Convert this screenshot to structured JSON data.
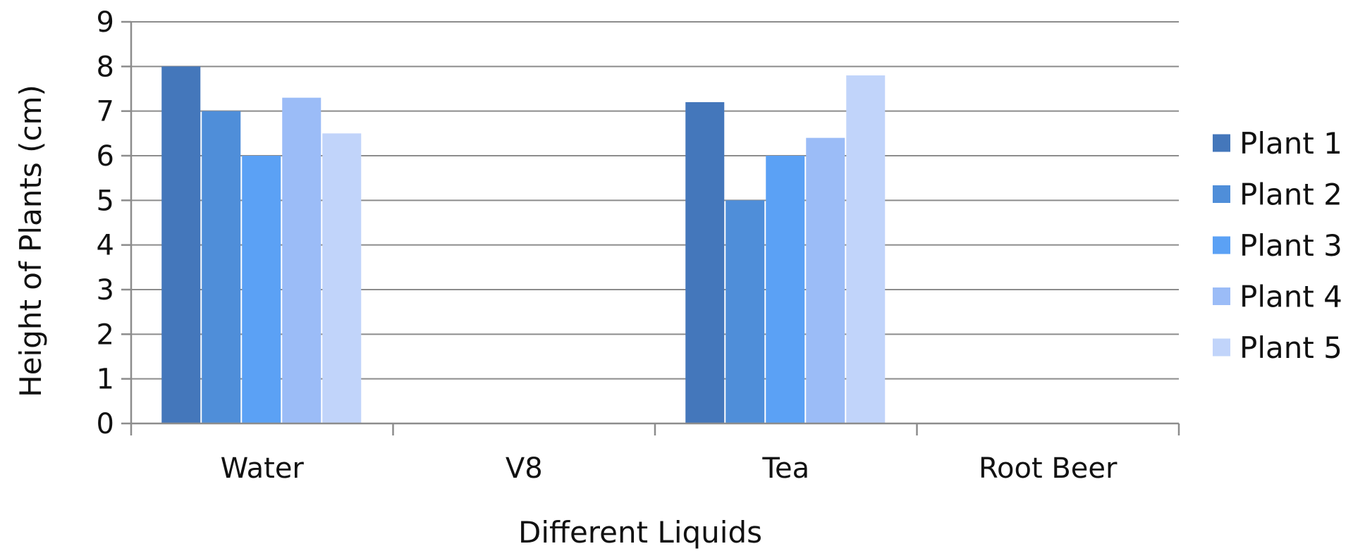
{
  "chart_data": {
    "type": "bar",
    "title": "",
    "xlabel": "Different Liquids",
    "ylabel": "Height of Plants (cm)",
    "ylim": [
      0,
      9
    ],
    "yticks": [
      0,
      1,
      2,
      3,
      4,
      5,
      6,
      7,
      8,
      9
    ],
    "grid": true,
    "legend_position": "right",
    "categories": [
      "Water",
      "V8",
      "Tea",
      "Root Beer"
    ],
    "series": [
      {
        "name": "Plant 1",
        "color": "#4477bb",
        "values": [
          8.0,
          null,
          7.2,
          null
        ]
      },
      {
        "name": "Plant 2",
        "color": "#4f8ed9",
        "values": [
          7.0,
          null,
          5.0,
          null
        ]
      },
      {
        "name": "Plant 3",
        "color": "#5ba1f5",
        "values": [
          6.0,
          null,
          6.0,
          null
        ]
      },
      {
        "name": "Plant 4",
        "color": "#9bbcf7",
        "values": [
          7.3,
          null,
          6.4,
          null
        ]
      },
      {
        "name": "Plant 5",
        "color": "#c1d4fa",
        "values": [
          6.5,
          null,
          7.8,
          null
        ]
      }
    ]
  }
}
